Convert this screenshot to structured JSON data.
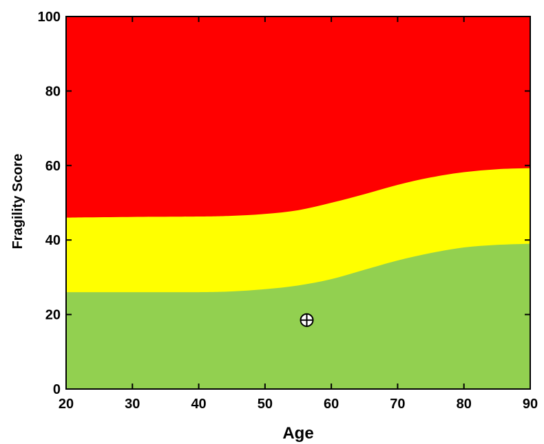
{
  "chart_data": {
    "type": "area",
    "xlabel": "Age",
    "ylabel": "Fragility Score",
    "xlim": [
      20,
      90
    ],
    "ylim": [
      0,
      100
    ],
    "xticks": [
      20,
      30,
      40,
      50,
      60,
      70,
      80,
      90
    ],
    "yticks": [
      0,
      20,
      40,
      60,
      80,
      100
    ],
    "grid": false,
    "x": [
      20,
      30,
      40,
      45,
      50,
      55,
      60,
      65,
      70,
      75,
      80,
      85,
      90
    ],
    "series": [
      {
        "values": [
          26,
          26,
          26,
          26.2,
          26.8,
          27.8,
          29.5,
          32,
          34.5,
          36.5,
          38,
          38.7,
          39
        ],
        "color": "#92d050"
      },
      {
        "values": [
          46,
          46.2,
          46.3,
          46.5,
          47,
          48,
          50,
          52.3,
          54.8,
          56.8,
          58.2,
          59,
          59.3
        ],
        "color": "#ffff00"
      },
      {
        "values": [
          100,
          100,
          100,
          100,
          100,
          100,
          100,
          100,
          100,
          100,
          100,
          100,
          100
        ],
        "color": "#ff0000"
      }
    ],
    "marker": {
      "x": 56.3,
      "y": 18.5
    }
  }
}
